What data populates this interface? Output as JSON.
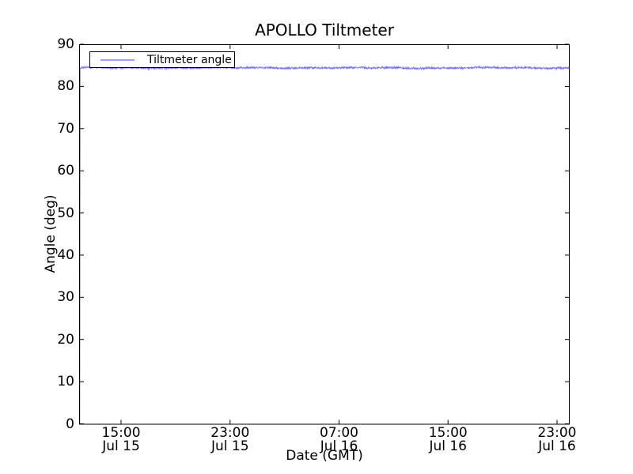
{
  "window": {
    "background": "#ffffff",
    "frame_color": "#000000"
  },
  "chart_data": {
    "type": "line",
    "title": "APOLLO Tiltmeter",
    "xlabel": "Date (GMT)",
    "ylabel": "Angle (deg)",
    "ylim": [
      0,
      90
    ],
    "y_ticks": [
      0,
      10,
      20,
      30,
      40,
      50,
      60,
      70,
      80,
      90
    ],
    "xlim_hours": [
      11.92,
      47.93
    ],
    "x_axis_note": "time axis from ~Jul 15 12:00 to ~Jul 16 24:00 GMT, major ticks every 8 hours, hours counted from Jul 15 00:00",
    "x_ticks": [
      {
        "hour": 15,
        "time": "15:00",
        "date": "Jul 15"
      },
      {
        "hour": 23,
        "time": "23:00",
        "date": "Jul 15"
      },
      {
        "hour": 31,
        "time": "07:00",
        "date": "Jul 16"
      },
      {
        "hour": 39,
        "time": "15:00",
        "date": "Jul 16"
      },
      {
        "hour": 47,
        "time": "23:00",
        "date": "Jul 16"
      }
    ],
    "grid": false,
    "tick_direction": "in",
    "legend": {
      "label": "Tiltmeter angle",
      "position": "upper left",
      "swatch_color": "rgba(0,0,255,0.38)"
    },
    "series": [
      {
        "name": "Tiltmeter angle",
        "color": "#0000ff",
        "alpha": 0.55,
        "start_value_deg": 0.0,
        "steady_value_deg": 84.4,
        "noise_peak_to_peak_deg": 0.65,
        "description": "Line rises vertically from 0 deg at the left edge (~Jul 15 12:00) to ~84.4 deg, then remains essentially constant with small noise until ~Jul 16 24:00"
      }
    ]
  }
}
